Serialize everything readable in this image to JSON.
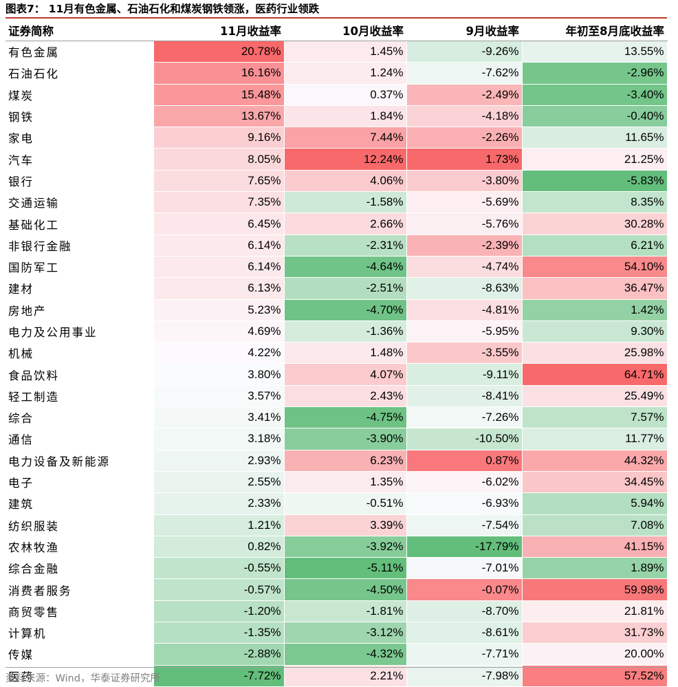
{
  "title": "图表7： 11月有色金属、石油石化和煤炭钢铁领涨，医药行业领跌",
  "columns": [
    "证券简称",
    "11月收益率",
    "10月收益率",
    "9月收益率",
    "年初至8月底收益率"
  ],
  "rows": [
    {
      "name": "有色金属",
      "v": [
        "20.78%",
        "1.45%",
        "-9.26%",
        "13.55%"
      ]
    },
    {
      "name": "石油石化",
      "v": [
        "16.16%",
        "1.24%",
        "-7.62%",
        "-2.96%"
      ]
    },
    {
      "name": "煤炭",
      "v": [
        "15.48%",
        "0.37%",
        "-2.49%",
        "-3.40%"
      ]
    },
    {
      "name": "钢铁",
      "v": [
        "13.67%",
        "1.84%",
        "-4.18%",
        "-0.40%"
      ]
    },
    {
      "name": "家电",
      "v": [
        "9.16%",
        "7.44%",
        "-2.26%",
        "11.65%"
      ]
    },
    {
      "name": "汽车",
      "v": [
        "8.05%",
        "12.24%",
        "1.73%",
        "21.25%"
      ]
    },
    {
      "name": "银行",
      "v": [
        "7.65%",
        "4.06%",
        "-3.80%",
        "-5.83%"
      ]
    },
    {
      "name": "交通运输",
      "v": [
        "7.35%",
        "-1.58%",
        "-5.69%",
        "8.35%"
      ]
    },
    {
      "name": "基础化工",
      "v": [
        "6.45%",
        "2.66%",
        "-5.76%",
        "30.28%"
      ]
    },
    {
      "name": "非银行金融",
      "v": [
        "6.14%",
        "-2.31%",
        "-2.39%",
        "6.21%"
      ]
    },
    {
      "name": "国防军工",
      "v": [
        "6.14%",
        "-4.64%",
        "-4.74%",
        "54.10%"
      ]
    },
    {
      "name": "建材",
      "v": [
        "6.13%",
        "-2.51%",
        "-8.63%",
        "36.47%"
      ]
    },
    {
      "name": "房地产",
      "v": [
        "5.23%",
        "-4.70%",
        "-4.81%",
        "1.42%"
      ]
    },
    {
      "name": "电力及公用事业",
      "v": [
        "4.69%",
        "-1.36%",
        "-5.95%",
        "9.30%"
      ]
    },
    {
      "name": "机械",
      "v": [
        "4.22%",
        "1.48%",
        "-3.55%",
        "25.98%"
      ]
    },
    {
      "name": "食品饮料",
      "v": [
        "3.80%",
        "4.07%",
        "-9.11%",
        "64.71%"
      ]
    },
    {
      "name": "轻工制造",
      "v": [
        "3.57%",
        "2.43%",
        "-8.41%",
        "25.49%"
      ]
    },
    {
      "name": "综合",
      "v": [
        "3.41%",
        "-4.75%",
        "-7.26%",
        "7.57%"
      ]
    },
    {
      "name": "通信",
      "v": [
        "3.18%",
        "-3.90%",
        "-10.50%",
        "11.77%"
      ]
    },
    {
      "name": "电力设备及新能源",
      "v": [
        "2.93%",
        "6.23%",
        "0.87%",
        "44.32%"
      ]
    },
    {
      "name": "电子",
      "v": [
        "2.55%",
        "1.35%",
        "-6.02%",
        "34.45%"
      ]
    },
    {
      "name": "建筑",
      "v": [
        "2.33%",
        "-0.51%",
        "-6.93%",
        "5.94%"
      ]
    },
    {
      "name": "纺织服装",
      "v": [
        "1.21%",
        "3.39%",
        "-7.54%",
        "7.08%"
      ]
    },
    {
      "name": "农林牧渔",
      "v": [
        "0.82%",
        "-3.92%",
        "-17.79%",
        "41.15%"
      ]
    },
    {
      "name": "综合金融",
      "v": [
        "-0.55%",
        "-5.11%",
        "-7.01%",
        "1.89%"
      ]
    },
    {
      "name": "消费者服务",
      "v": [
        "-0.57%",
        "-4.50%",
        "-0.07%",
        "59.98%"
      ]
    },
    {
      "name": "商贸零售",
      "v": [
        "-1.20%",
        "-1.81%",
        "-8.70%",
        "21.81%"
      ]
    },
    {
      "name": "计算机",
      "v": [
        "-1.35%",
        "-3.12%",
        "-8.61%",
        "31.73%"
      ]
    },
    {
      "name": "传媒",
      "v": [
        "-2.88%",
        "-4.32%",
        "-7.71%",
        "20.00%"
      ]
    },
    {
      "name": "医药",
      "v": [
        "-7.72%",
        "2.21%",
        "-7.98%",
        "57.52%"
      ]
    }
  ],
  "source": "资料来源：Wind，华泰证券研究所",
  "colors": {
    "max": "#f8696b",
    "mid": "#fcfcff",
    "min": "#63be7b",
    "rule": "#c0392b"
  }
}
